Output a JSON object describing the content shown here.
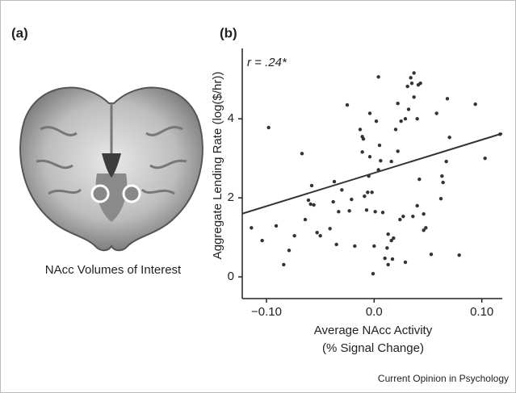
{
  "panel_a": {
    "label": "(a)",
    "caption": "NAcc Volumes of Interest"
  },
  "credit": "Current Opinion in Psychology",
  "chart_data": {
    "type": "scatter",
    "panel_label": "(b)",
    "xlabel": [
      "Average NAcc Activity",
      "(% Signal Change)"
    ],
    "ylabel": "Aggregate Lending Rate (log($/hr))",
    "annotation": "r = .24*",
    "color": "#333333",
    "xlim": [
      -0.1225,
      0.119
    ],
    "ylim": [
      -0.55,
      5.68
    ],
    "xticks": [
      {
        "value": -0.1,
        "label": "−0.10"
      },
      {
        "value": 0,
        "label": "0.0"
      },
      {
        "value": 0.1,
        "label": "0.10"
      }
    ],
    "yticks": [
      0,
      2,
      4
    ],
    "trend_line": {
      "x": [
        -0.1225,
        0.119
      ],
      "y": [
        1.6,
        3.63
      ]
    },
    "x": [
      -0.114,
      -0.104,
      -0.098,
      -0.091,
      -0.084,
      -0.079,
      -0.074,
      -0.067,
      -0.064,
      -0.061,
      -0.058,
      -0.059,
      -0.056,
      -0.053,
      -0.05,
      -0.041,
      -0.038,
      -0.037,
      -0.035,
      -0.033,
      -0.03,
      -0.025,
      -0.023,
      -0.021,
      -0.018,
      -0.013,
      -0.011,
      -0.01,
      -0.011,
      -0.009,
      -0.007,
      -0.006,
      -0.005,
      -0.004,
      -0.004,
      -0.002,
      -0.001,
      0.0,
      0.001,
      0.002,
      0.004,
      0.004,
      0.005,
      0.006,
      0.008,
      0.01,
      0.012,
      0.013,
      0.016,
      0.017,
      0.016,
      0.018,
      0.02,
      0.022,
      0.022,
      0.024,
      0.025,
      0.027,
      0.029,
      0.031,
      0.032,
      0.034,
      0.036,
      0.035,
      0.037,
      0.037,
      0.04,
      0.04,
      0.042,
      0.041,
      0.046,
      0.043,
      0.048,
      0.053,
      0.058,
      0.062,
      0.063,
      0.064,
      0.067,
      0.068,
      0.07,
      0.079,
      0.094,
      0.103,
      0.117,
      0.013,
      0.029,
      0.046
    ],
    "y": [
      1.24,
      0.92,
      3.78,
      1.29,
      0.31,
      0.67,
      1.04,
      3.12,
      1.45,
      1.94,
      2.31,
      1.84,
      1.82,
      1.12,
      1.04,
      1.22,
      1.9,
      2.41,
      0.82,
      1.65,
      2.2,
      4.35,
      1.67,
      1.96,
      0.78,
      3.73,
      3.55,
      3.49,
      3.16,
      2.04,
      1.69,
      2.14,
      2.55,
      4.14,
      3.04,
      2.14,
      0.08,
      0.78,
      1.65,
      3.94,
      5.06,
      2.71,
      3.33,
      2.94,
      1.63,
      0.47,
      0.73,
      1.08,
      0.92,
      0.45,
      2.92,
      0.98,
      3.73,
      3.18,
      4.39,
      1.45,
      3.94,
      1.53,
      4.0,
      4.82,
      4.24,
      5.04,
      1.53,
      4.9,
      5.16,
      4.55,
      4.0,
      1.8,
      2.47,
      4.86,
      1.59,
      4.9,
      1.24,
      0.57,
      4.14,
      1.98,
      2.55,
      2.39,
      2.92,
      4.51,
      3.53,
      0.55,
      4.37,
      3.0,
      3.61,
      0.31,
      0.37,
      1.18
    ]
  }
}
